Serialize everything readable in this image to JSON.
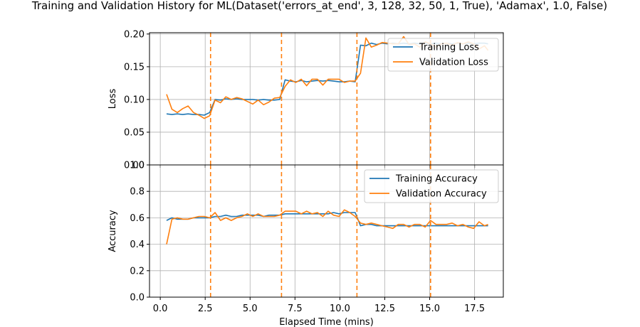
{
  "figure_title": "Training and Validation History for ML(Dataset('errors_at_end', 3, 128, 32, 50, 1, True), 'Adamax', 1.0, False)",
  "colors": {
    "training": "#1f77b4",
    "validation": "#ff7f0e",
    "grid": "#b0b0b0",
    "marker_line": "#ff7f0e"
  },
  "chart_data": [
    {
      "type": "line",
      "ylabel": "Loss",
      "xlabel": "",
      "xlim": [
        -0.6,
        19.1
      ],
      "ylim": [
        0.0,
        0.202
      ],
      "grid": true,
      "legend": "top-right",
      "yticks": [
        0.0,
        0.05,
        0.1,
        0.15,
        0.2
      ],
      "ytick_labels": [
        "0.00",
        "0.05",
        "0.10",
        "0.15",
        "0.20"
      ],
      "xticks": [
        0.0,
        2.5,
        5.0,
        7.5,
        10.0,
        12.5,
        15.0,
        17.5
      ],
      "vertical_markers": [
        2.8,
        6.75,
        10.95,
        15.05
      ],
      "x": [
        0.35,
        0.65,
        0.95,
        1.25,
        1.55,
        1.85,
        2.15,
        2.45,
        2.75,
        3.05,
        3.35,
        3.65,
        3.95,
        4.25,
        4.55,
        4.85,
        5.15,
        5.45,
        5.75,
        6.05,
        6.35,
        6.65,
        6.95,
        7.25,
        7.55,
        7.85,
        8.15,
        8.45,
        8.75,
        9.05,
        9.35,
        9.65,
        9.95,
        10.25,
        10.55,
        10.85,
        11.15,
        11.45,
        11.75,
        12.05,
        12.35,
        12.65,
        12.95,
        13.25,
        13.55,
        13.85,
        14.15,
        14.45,
        14.75,
        15.05,
        15.35,
        15.65,
        15.95,
        16.25,
        16.55,
        16.85,
        17.15,
        17.45,
        17.75,
        18.05,
        18.25
      ],
      "series": [
        {
          "name": "Training Loss",
          "values": [
            0.078,
            0.077,
            0.078,
            0.077,
            0.078,
            0.077,
            0.077,
            0.076,
            0.08,
            0.1,
            0.099,
            0.101,
            0.1,
            0.101,
            0.1,
            0.1,
            0.1,
            0.099,
            0.1,
            0.099,
            0.099,
            0.1,
            0.13,
            0.128,
            0.127,
            0.129,
            0.127,
            0.128,
            0.129,
            0.128,
            0.129,
            0.128,
            0.127,
            0.127,
            0.128,
            0.127,
            0.183,
            0.182,
            0.186,
            0.184,
            0.186,
            0.185,
            0.186,
            0.185,
            0.186,
            0.185,
            0.186,
            0.185,
            0.186,
            0.185,
            0.186,
            0.185,
            0.186,
            0.185,
            0.186,
            0.185,
            0.186,
            0.185,
            0.186,
            0.186,
            0.185
          ]
        },
        {
          "name": "Validation Loss",
          "values": [
            0.108,
            0.085,
            0.08,
            0.086,
            0.09,
            0.08,
            0.076,
            0.071,
            0.075,
            0.099,
            0.095,
            0.104,
            0.1,
            0.103,
            0.101,
            0.097,
            0.093,
            0.099,
            0.092,
            0.096,
            0.102,
            0.103,
            0.12,
            0.13,
            0.126,
            0.131,
            0.121,
            0.131,
            0.131,
            0.122,
            0.131,
            0.131,
            0.131,
            0.126,
            0.128,
            0.128,
            0.14,
            0.194,
            0.18,
            0.183,
            0.187,
            0.186,
            0.185,
            0.185,
            0.196,
            0.184,
            0.185,
            0.18,
            0.188,
            0.185,
            0.18,
            0.185,
            0.186,
            0.183,
            0.187,
            0.185,
            0.188,
            0.185,
            0.177,
            0.182,
            0.175
          ]
        }
      ]
    },
    {
      "type": "line",
      "ylabel": "Accuracy",
      "xlabel": "Elapsed Time (mins)",
      "xlim": [
        -0.6,
        19.1
      ],
      "ylim": [
        0.0,
        1.0
      ],
      "grid": true,
      "legend": "top-right",
      "yticks": [
        0.0,
        0.2,
        0.4,
        0.6,
        0.8,
        1.0
      ],
      "ytick_labels": [
        "0.0",
        "0.2",
        "0.4",
        "0.6",
        "0.8",
        "1.0"
      ],
      "xticks": [
        0.0,
        2.5,
        5.0,
        7.5,
        10.0,
        12.5,
        15.0,
        17.5
      ],
      "xtick_labels": [
        "0.0",
        "2.5",
        "5.0",
        "7.5",
        "10.0",
        "12.5",
        "15.0",
        "17.5"
      ],
      "vertical_markers": [
        2.8,
        6.75,
        10.95,
        15.05
      ],
      "x": [
        0.35,
        0.65,
        0.95,
        1.25,
        1.55,
        1.85,
        2.15,
        2.45,
        2.75,
        3.05,
        3.35,
        3.65,
        3.95,
        4.25,
        4.55,
        4.85,
        5.15,
        5.45,
        5.75,
        6.05,
        6.35,
        6.65,
        6.95,
        7.25,
        7.55,
        7.85,
        8.15,
        8.45,
        8.75,
        9.05,
        9.35,
        9.65,
        9.95,
        10.25,
        10.55,
        10.85,
        11.15,
        11.45,
        11.75,
        12.05,
        12.35,
        12.65,
        12.95,
        13.25,
        13.55,
        13.85,
        14.15,
        14.45,
        14.75,
        15.05,
        15.35,
        15.65,
        15.95,
        16.25,
        16.55,
        16.85,
        17.15,
        17.45,
        17.75,
        18.05,
        18.25
      ],
      "series": [
        {
          "name": "Training Accuracy",
          "values": [
            0.58,
            0.6,
            0.59,
            0.59,
            0.59,
            0.6,
            0.6,
            0.6,
            0.6,
            0.61,
            0.61,
            0.62,
            0.61,
            0.61,
            0.62,
            0.62,
            0.62,
            0.62,
            0.61,
            0.62,
            0.62,
            0.62,
            0.63,
            0.63,
            0.63,
            0.63,
            0.63,
            0.63,
            0.63,
            0.63,
            0.63,
            0.64,
            0.63,
            0.64,
            0.64,
            0.64,
            0.54,
            0.55,
            0.55,
            0.54,
            0.54,
            0.54,
            0.54,
            0.54,
            0.54,
            0.54,
            0.54,
            0.54,
            0.54,
            0.54,
            0.54,
            0.54,
            0.54,
            0.54,
            0.54,
            0.54,
            0.54,
            0.54,
            0.54,
            0.54,
            0.54
          ]
        },
        {
          "name": "Validation Accuracy",
          "values": [
            0.4,
            0.59,
            0.6,
            0.59,
            0.59,
            0.6,
            0.61,
            0.61,
            0.6,
            0.64,
            0.58,
            0.6,
            0.58,
            0.6,
            0.61,
            0.63,
            0.61,
            0.63,
            0.61,
            0.61,
            0.61,
            0.62,
            0.65,
            0.65,
            0.65,
            0.63,
            0.65,
            0.63,
            0.64,
            0.61,
            0.65,
            0.62,
            0.61,
            0.66,
            0.64,
            0.61,
            0.56,
            0.55,
            0.56,
            0.55,
            0.54,
            0.53,
            0.52,
            0.55,
            0.55,
            0.53,
            0.55,
            0.55,
            0.53,
            0.58,
            0.55,
            0.55,
            0.55,
            0.56,
            0.54,
            0.55,
            0.53,
            0.52,
            0.57,
            0.54,
            0.55
          ]
        }
      ]
    }
  ]
}
